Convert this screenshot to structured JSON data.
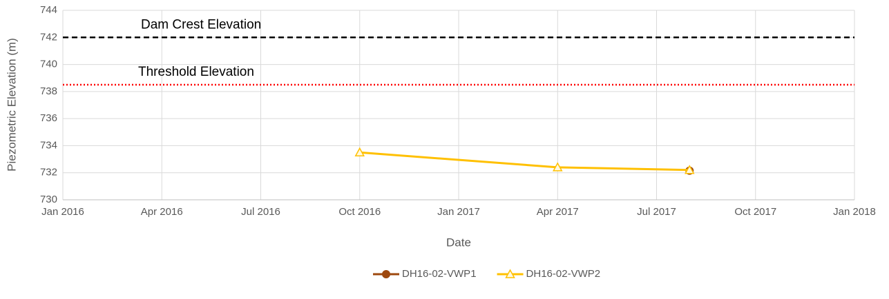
{
  "chart_data": {
    "type": "line",
    "xlabel": "Date",
    "ylabel": "Piezometric Elevation (m)",
    "x": [
      "2016-10",
      "2017-04",
      "2017-08"
    ],
    "series": [
      {
        "name": "DH16-02-VWP1",
        "color": "#9e480e",
        "marker": "circle",
        "values": [
          null,
          null,
          732.15
        ]
      },
      {
        "name": "DH16-02-VWP2",
        "color": "#ffc000",
        "marker": "triangle",
        "values": [
          733.5,
          732.4,
          732.2
        ]
      }
    ],
    "xlim": [
      "2016-01",
      "2018-01"
    ],
    "xticks": [
      {
        "value": "2016-01",
        "label": "Jan 2016"
      },
      {
        "value": "2016-04",
        "label": "Apr 2016"
      },
      {
        "value": "2016-07",
        "label": "Jul 2016"
      },
      {
        "value": "2016-10",
        "label": "Oct 2016"
      },
      {
        "value": "2017-01",
        "label": "Jan 2017"
      },
      {
        "value": "2017-04",
        "label": "Apr 2017"
      },
      {
        "value": "2017-07",
        "label": "Jul 2017"
      },
      {
        "value": "2017-10",
        "label": "Oct 2017"
      },
      {
        "value": "2018-01",
        "label": "Jan 2018"
      }
    ],
    "ylim": [
      730,
      744
    ],
    "yticks": [
      730,
      732,
      734,
      736,
      738,
      740,
      742,
      744
    ],
    "grid": true,
    "legend": "bottom",
    "reference_lines": [
      {
        "label": "Dam Crest Elevation",
        "value": 742,
        "color": "#000000",
        "style": "dashed"
      },
      {
        "label": "Threshold Elevation",
        "value": 738.5,
        "color": "#ff0000",
        "style": "dotted"
      }
    ]
  }
}
